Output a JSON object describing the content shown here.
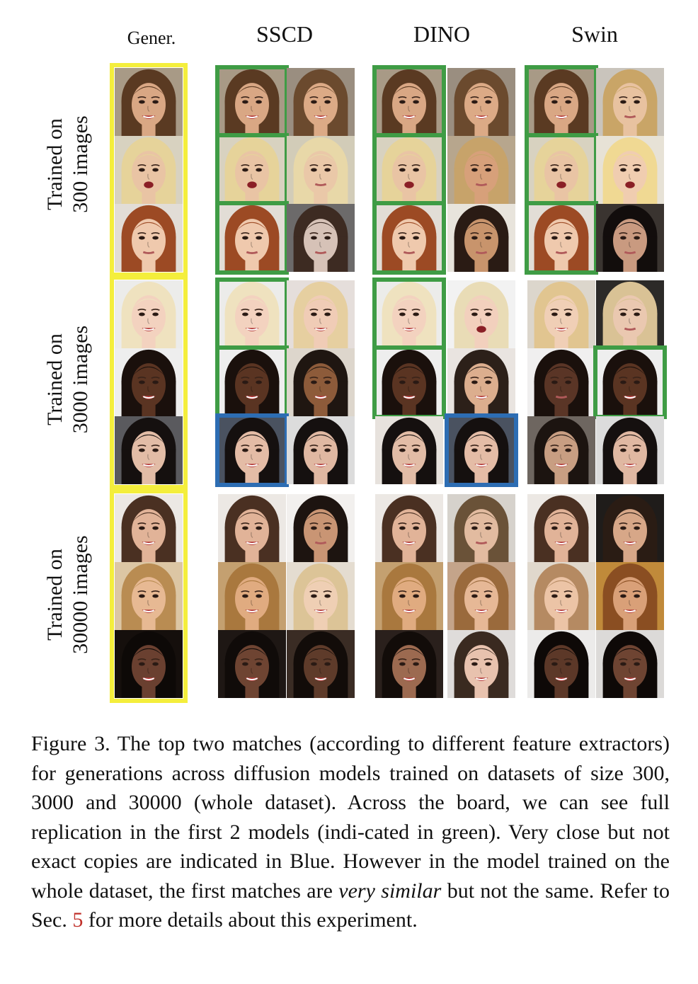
{
  "column_headers": [
    "Gener.",
    "SSCD",
    "DINO",
    "Swin"
  ],
  "row_labels": [
    [
      "Trained on",
      "300 images"
    ],
    [
      "Trained on",
      "3000 images"
    ],
    [
      "Trained on",
      "30000 images"
    ]
  ],
  "legend_colors": {
    "generation": "#f4ee3c",
    "exact_copy": "#3f9c45",
    "near_copy": "#2d6db3"
  },
  "tiles": [
    {
      "group": 0,
      "row": 0,
      "col": 0,
      "bg": "#a89a86",
      "skin": "#d9a784",
      "hair": "#5a3a22",
      "tag": "generation",
      "face": "smile"
    },
    {
      "group": 0,
      "row": 0,
      "col": 1,
      "bg": "#a89a86",
      "skin": "#d9a784",
      "hair": "#5a3a22",
      "tag": "green",
      "face": "smile"
    },
    {
      "group": 0,
      "row": 0,
      "col": 2,
      "bg": "#9a8e80",
      "skin": "#dcaa86",
      "hair": "#6b4a2e",
      "tag": "none",
      "face": "smile"
    },
    {
      "group": 0,
      "row": 0,
      "col": 3,
      "bg": "#a89a86",
      "skin": "#d9a784",
      "hair": "#5a3a22",
      "tag": "green",
      "face": "smile"
    },
    {
      "group": 0,
      "row": 0,
      "col": 4,
      "bg": "#9a8e80",
      "skin": "#dcaa86",
      "hair": "#6b4a2e",
      "tag": "none",
      "face": "smile"
    },
    {
      "group": 0,
      "row": 0,
      "col": 5,
      "bg": "#a89a86",
      "skin": "#d9a784",
      "hair": "#5a3a22",
      "tag": "green",
      "face": "smile"
    },
    {
      "group": 0,
      "row": 0,
      "col": 6,
      "bg": "#c9c4bc",
      "skin": "#e8c2a0",
      "hair": "#c9a567",
      "tag": "none",
      "face": "neutral"
    },
    {
      "group": 0,
      "row": 1,
      "col": 0,
      "bg": "#d8d2c0",
      "skin": "#e9c4a4",
      "hair": "#e6d39a",
      "tag": "generation",
      "face": "open"
    },
    {
      "group": 0,
      "row": 1,
      "col": 1,
      "bg": "#d8d2c0",
      "skin": "#e9c4a4",
      "hair": "#e6d39a",
      "tag": "green",
      "face": "open"
    },
    {
      "group": 0,
      "row": 1,
      "col": 2,
      "bg": "#d2ccb8",
      "skin": "#eac8a8",
      "hair": "#e8d8a8",
      "tag": "none",
      "face": "neutral"
    },
    {
      "group": 0,
      "row": 1,
      "col": 3,
      "bg": "#d8d2c0",
      "skin": "#e9c4a4",
      "hair": "#e6d39a",
      "tag": "green",
      "face": "open"
    },
    {
      "group": 0,
      "row": 1,
      "col": 4,
      "bg": "#b7a68d",
      "skin": "#d7a07a",
      "hair": "#c7a36a",
      "tag": "none",
      "face": "neutral"
    },
    {
      "group": 0,
      "row": 1,
      "col": 5,
      "bg": "#d8d2c0",
      "skin": "#e9c4a4",
      "hair": "#e6d39a",
      "tag": "green",
      "face": "open"
    },
    {
      "group": 0,
      "row": 1,
      "col": 6,
      "bg": "#e7e2d6",
      "skin": "#f0cdb0",
      "hair": "#f0d993",
      "tag": "none",
      "face": "open"
    },
    {
      "group": 0,
      "row": 2,
      "col": 0,
      "bg": "#e2ddd6",
      "skin": "#efc9ad",
      "hair": "#9c4a24",
      "tag": "generation",
      "face": "neutral"
    },
    {
      "group": 0,
      "row": 2,
      "col": 1,
      "bg": "#e2ddd6",
      "skin": "#efc9ad",
      "hair": "#9c4a24",
      "tag": "green",
      "face": "neutral"
    },
    {
      "group": 0,
      "row": 2,
      "col": 2,
      "bg": "#6c6a6a",
      "skin": "#d6c2b7",
      "hair": "#3d2b22",
      "tag": "none",
      "face": "neutral"
    },
    {
      "group": 0,
      "row": 2,
      "col": 3,
      "bg": "#e2ddd6",
      "skin": "#efc9ad",
      "hair": "#9c4a24",
      "tag": "green",
      "face": "neutral"
    },
    {
      "group": 0,
      "row": 2,
      "col": 4,
      "bg": "#e8e4dc",
      "skin": "#c8946c",
      "hair": "#2a1b14",
      "tag": "none",
      "face": "neutral"
    },
    {
      "group": 0,
      "row": 2,
      "col": 5,
      "bg": "#e2ddd6",
      "skin": "#efc9ad",
      "hair": "#9c4a24",
      "tag": "green",
      "face": "neutral"
    },
    {
      "group": 0,
      "row": 2,
      "col": 6,
      "bg": "#3a3430",
      "skin": "#c99a80",
      "hair": "#120d0c",
      "tag": "none",
      "face": "neutral"
    },
    {
      "group": 1,
      "row": 0,
      "col": 0,
      "bg": "#ececea",
      "skin": "#f3d2bf",
      "hair": "#efe2bf",
      "tag": "generation",
      "face": "smile"
    },
    {
      "group": 1,
      "row": 0,
      "col": 1,
      "bg": "#ececea",
      "skin": "#f3d2bf",
      "hair": "#efe2bf",
      "tag": "green",
      "face": "smile"
    },
    {
      "group": 1,
      "row": 0,
      "col": 2,
      "bg": "#e5dedb",
      "skin": "#f0ccb6",
      "hair": "#e6cfa0",
      "tag": "none",
      "face": "smile"
    },
    {
      "group": 1,
      "row": 0,
      "col": 3,
      "bg": "#ececea",
      "skin": "#f3d2bf",
      "hair": "#efe2bf",
      "tag": "green",
      "face": "smile"
    },
    {
      "group": 1,
      "row": 0,
      "col": 4,
      "bg": "#f2f2f2",
      "skin": "#f2d0bd",
      "hair": "#e9dcb6",
      "tag": "none",
      "face": "open"
    },
    {
      "group": 1,
      "row": 0,
      "col": 5,
      "bg": "#dcd6cc",
      "skin": "#f0cfb6",
      "hair": "#e1c590",
      "tag": "none",
      "face": "smile"
    },
    {
      "group": 1,
      "row": 0,
      "col": 6,
      "bg": "#2c2a28",
      "skin": "#eac8b0",
      "hair": "#d9c295",
      "tag": "none",
      "face": "neutral"
    },
    {
      "group": 1,
      "row": 1,
      "col": 0,
      "bg": "#eeeeee",
      "skin": "#5a3422",
      "hair": "#1a100c",
      "tag": "generation",
      "face": "smile"
    },
    {
      "group": 1,
      "row": 1,
      "col": 1,
      "bg": "#eeeeee",
      "skin": "#5a3422",
      "hair": "#1a100c",
      "tag": "green",
      "face": "smile"
    },
    {
      "group": 1,
      "row": 1,
      "col": 2,
      "bg": "#ddd6cc",
      "skin": "#8d5b3a",
      "hair": "#1f1611",
      "tag": "none",
      "face": "smile"
    },
    {
      "group": 1,
      "row": 1,
      "col": 3,
      "bg": "#eeeeee",
      "skin": "#5a3422",
      "hair": "#1a100c",
      "tag": "green",
      "face": "smile"
    },
    {
      "group": 1,
      "row": 1,
      "col": 4,
      "bg": "#e9e4e0",
      "skin": "#dcae8e",
      "hair": "#2c2019",
      "tag": "none",
      "face": "smile"
    },
    {
      "group": 1,
      "row": 1,
      "col": 5,
      "bg": "#f0efef",
      "skin": "#5a3526",
      "hair": "#1a100c",
      "tag": "none",
      "face": "neutral"
    },
    {
      "group": 1,
      "row": 1,
      "col": 6,
      "bg": "#eeeeee",
      "skin": "#5a3422",
      "hair": "#1a100c",
      "tag": "green",
      "face": "smile"
    },
    {
      "group": 1,
      "row": 2,
      "col": 0,
      "bg": "#5a5a5e",
      "skin": "#e2bca6",
      "hair": "#15100f",
      "tag": "generation",
      "face": "smile"
    },
    {
      "group": 1,
      "row": 2,
      "col": 1,
      "bg": "#4a5260",
      "skin": "#e4bca6",
      "hair": "#15100f",
      "tag": "blue",
      "face": "smile"
    },
    {
      "group": 1,
      "row": 2,
      "col": 2,
      "bg": "#dcdcdc",
      "skin": "#e0b8a2",
      "hair": "#15100f",
      "tag": "none",
      "face": "smile"
    },
    {
      "group": 1,
      "row": 2,
      "col": 3,
      "bg": "#e7e2dd",
      "skin": "#e2bca6",
      "hair": "#15100f",
      "tag": "none",
      "face": "smile"
    },
    {
      "group": 1,
      "row": 2,
      "col": 4,
      "bg": "#4a5260",
      "skin": "#e4bca6",
      "hair": "#15100f",
      "tag": "blue",
      "face": "smile"
    },
    {
      "group": 1,
      "row": 2,
      "col": 5,
      "bg": "#6e6660",
      "skin": "#c89e82",
      "hair": "#1c1410",
      "tag": "none",
      "face": "smile"
    },
    {
      "group": 1,
      "row": 2,
      "col": 6,
      "bg": "#dcdcdc",
      "skin": "#e0b8a2",
      "hair": "#15100f",
      "tag": "none",
      "face": "smile"
    },
    {
      "group": 2,
      "row": 0,
      "col": 0,
      "bg": "#ece8e4",
      "skin": "#e1b398",
      "hair": "#4a3022",
      "tag": "generation",
      "face": "smile"
    },
    {
      "group": 2,
      "row": 0,
      "col": 1,
      "bg": "#ece8e4",
      "skin": "#e1b398",
      "hair": "#4a3022",
      "tag": "none",
      "face": "smile"
    },
    {
      "group": 2,
      "row": 0,
      "col": 2,
      "bg": "#f2f0ee",
      "skin": "#c99574",
      "hair": "#1d1410",
      "tag": "none",
      "face": "neutral"
    },
    {
      "group": 2,
      "row": 0,
      "col": 3,
      "bg": "#ece8e4",
      "skin": "#e1b398",
      "hair": "#4a3022",
      "tag": "none",
      "face": "smile"
    },
    {
      "group": 2,
      "row": 0,
      "col": 4,
      "bg": "#d6d2cc",
      "skin": "#e2bba0",
      "hair": "#6a5238",
      "tag": "none",
      "face": "neutral"
    },
    {
      "group": 2,
      "row": 0,
      "col": 5,
      "bg": "#ece8e4",
      "skin": "#e1b398",
      "hair": "#4a3022",
      "tag": "none",
      "face": "smile"
    },
    {
      "group": 2,
      "row": 0,
      "col": 6,
      "bg": "#1f1c1a",
      "skin": "#d7a788",
      "hair": "#2a1c14",
      "tag": "none",
      "face": "smile"
    },
    {
      "group": 2,
      "row": 1,
      "col": 0,
      "bg": "#dcc6a4",
      "skin": "#e7b993",
      "hair": "#b98c52",
      "tag": "generation",
      "face": "smile"
    },
    {
      "group": 2,
      "row": 1,
      "col": 1,
      "bg": "#c4a070",
      "skin": "#e0ab80",
      "hair": "#a9783e",
      "tag": "none",
      "face": "smile"
    },
    {
      "group": 2,
      "row": 1,
      "col": 2,
      "bg": "#e4dcd0",
      "skin": "#efcfb4",
      "hair": "#dcc497",
      "tag": "none",
      "face": "smile"
    },
    {
      "group": 2,
      "row": 1,
      "col": 3,
      "bg": "#c4a070",
      "skin": "#e0ab80",
      "hair": "#a9783e",
      "tag": "none",
      "face": "smile"
    },
    {
      "group": 2,
      "row": 1,
      "col": 4,
      "bg": "#c4a48a",
      "skin": "#e6b896",
      "hair": "#9a6a3c",
      "tag": "none",
      "face": "smile"
    },
    {
      "group": 2,
      "row": 1,
      "col": 5,
      "bg": "#e0d8cc",
      "skin": "#ecc4a6",
      "hair": "#b58a62",
      "tag": "none",
      "face": "smile"
    },
    {
      "group": 2,
      "row": 1,
      "col": 6,
      "bg": "#c08a3a",
      "skin": "#d9a078",
      "hair": "#8a4e22",
      "tag": "none",
      "face": "smile"
    },
    {
      "group": 2,
      "row": 2,
      "col": 0,
      "bg": "#150f0c",
      "skin": "#6a4030",
      "hair": "#0d0907",
      "tag": "generation",
      "face": "smile"
    },
    {
      "group": 2,
      "row": 2,
      "col": 1,
      "bg": "#1e1714",
      "skin": "#6e4432",
      "hair": "#100b09",
      "tag": "none",
      "face": "smile"
    },
    {
      "group": 2,
      "row": 2,
      "col": 2,
      "bg": "#3a2c24",
      "skin": "#5e3b2a",
      "hair": "#120c09",
      "tag": "none",
      "face": "smile"
    },
    {
      "group": 2,
      "row": 2,
      "col": 3,
      "bg": "#2a201c",
      "skin": "#9c6a50",
      "hair": "#120c09",
      "tag": "none",
      "face": "smile"
    },
    {
      "group": 2,
      "row": 2,
      "col": 4,
      "bg": "#dfdcda",
      "skin": "#e8c2ae",
      "hair": "#3a2a20",
      "tag": "none",
      "face": "smile"
    },
    {
      "group": 2,
      "row": 2,
      "col": 5,
      "bg": "#ecebea",
      "skin": "#5c3828",
      "hair": "#0e0907",
      "tag": "none",
      "face": "smile"
    },
    {
      "group": 2,
      "row": 2,
      "col": 6,
      "bg": "#dcdad8",
      "skin": "#6e4432",
      "hair": "#0e0907",
      "tag": "none",
      "face": "smile"
    }
  ],
  "caption": {
    "text1": "Figure 3.  The top two matches (according to different feature extractors) for generations across diffusion models trained on datasets of size 300, 3000 and 30000 (whole dataset).  Across the board, we can see full replication in the first 2 models (indi-cated in green).  Very close but not exact copies are indicated in Blue. However in the model trained on the whole dataset, the first matches are ",
    "italic": "very similar",
    "text2": " but not the same. Refer to Sec. ",
    "ref": "5",
    "text3": " for more details about this experiment."
  }
}
